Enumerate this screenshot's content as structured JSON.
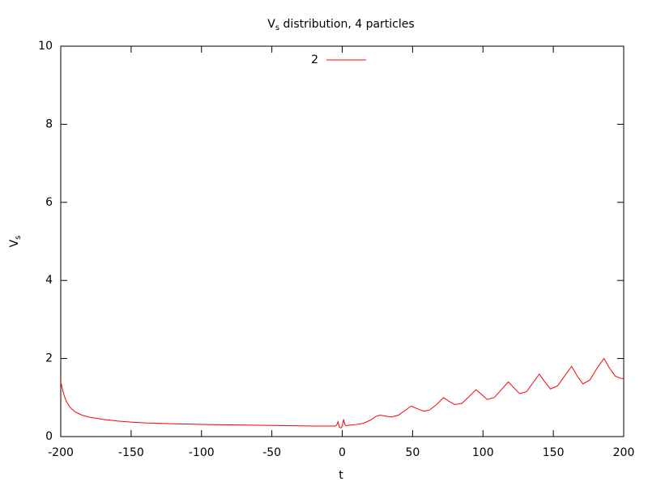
{
  "chart_data": {
    "type": "line",
    "title": [
      "V",
      "s",
      " distribution, 4 particles"
    ],
    "xlabel": "t",
    "ylabel": [
      "V",
      "s"
    ],
    "xlim": [
      -200,
      200
    ],
    "ylim": [
      0,
      10
    ],
    "xticks": [
      -200,
      -150,
      -100,
      -50,
      0,
      50,
      100,
      150,
      200
    ],
    "yticks": [
      0,
      2,
      4,
      6,
      8,
      10
    ],
    "grid": false,
    "legend": "top",
    "x": [
      -200,
      -198,
      -196,
      -194,
      -192,
      -190,
      -185,
      -180,
      -170,
      -160,
      -150,
      -140,
      -120,
      -100,
      -80,
      -60,
      -40,
      -20,
      -5,
      -4,
      -3,
      -2,
      -1,
      0,
      1,
      2,
      3,
      5,
      10,
      15,
      20,
      24,
      27,
      30,
      35,
      40,
      45,
      49,
      53,
      58,
      62,
      67,
      72,
      76,
      80,
      85,
      90,
      95,
      99,
      103,
      108,
      113,
      118,
      122,
      126,
      131,
      136,
      140,
      144,
      148,
      153,
      158,
      163,
      167,
      171,
      176,
      181,
      186,
      190,
      194,
      197,
      200
    ],
    "series": [
      {
        "name": "2",
        "color": "#ff0000",
        "values": [
          1.4,
          1.1,
          0.9,
          0.78,
          0.7,
          0.64,
          0.55,
          0.5,
          0.44,
          0.4,
          0.37,
          0.35,
          0.33,
          0.31,
          0.3,
          0.29,
          0.28,
          0.27,
          0.27,
          0.29,
          0.38,
          0.24,
          0.22,
          0.26,
          0.44,
          0.3,
          0.28,
          0.29,
          0.31,
          0.34,
          0.42,
          0.52,
          0.55,
          0.53,
          0.5,
          0.55,
          0.68,
          0.78,
          0.72,
          0.65,
          0.68,
          0.82,
          1.0,
          0.9,
          0.82,
          0.85,
          1.02,
          1.2,
          1.08,
          0.95,
          1.0,
          1.2,
          1.4,
          1.25,
          1.1,
          1.15,
          1.4,
          1.6,
          1.4,
          1.22,
          1.3,
          1.55,
          1.8,
          1.55,
          1.35,
          1.45,
          1.75,
          2.0,
          1.75,
          1.55,
          1.5,
          1.48
        ]
      }
    ]
  }
}
